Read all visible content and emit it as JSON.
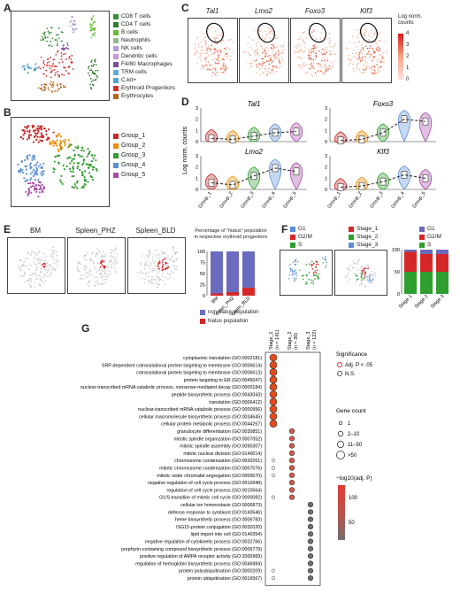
{
  "panel_labels": {
    "A": "A",
    "B": "B",
    "C": "C",
    "D": "D",
    "E": "E",
    "F": "F",
    "G": "G"
  },
  "legend_A": [
    {
      "label": "CD8 T cells",
      "color": "#3a8f3a"
    },
    {
      "label": "CD4 T cells",
      "color": "#2e7d32"
    },
    {
      "label": "B cells",
      "color": "#66bb33"
    },
    {
      "label": "Neutrophils",
      "color": "#8fbc8f"
    },
    {
      "label": "NK cells",
      "color": "#b39ddb"
    },
    {
      "label": "Dendritic cells",
      "color": "#ce93d8"
    },
    {
      "label": "F4/80 Macrophages",
      "color": "#7b4fa0"
    },
    {
      "label": "TRM cells",
      "color": "#5dade2"
    },
    {
      "label": "C-kit+",
      "color": "#4fa3d1"
    },
    {
      "label": "Erythroid Progenitors",
      "color": "#d32f2f"
    },
    {
      "label": "Erythrocytes",
      "color": "#b5651d"
    }
  ],
  "legend_B": [
    {
      "label": "Group_1",
      "color": "#c62828"
    },
    {
      "label": "Group_2",
      "color": "#ef8c00"
    },
    {
      "label": "Group_3",
      "color": "#2e9e2e"
    },
    {
      "label": "Group_4",
      "color": "#5b8fd6"
    },
    {
      "label": "Group_5",
      "color": "#a64ca6"
    }
  ],
  "panel_C": {
    "genes": [
      "Tal1",
      "Lmo2",
      "Foxo3",
      "Klf3"
    ],
    "colorbar_title": "Log norm. counts",
    "colorbar_ticks": [
      "4",
      "3",
      "2",
      "1",
      "0"
    ]
  },
  "panel_D": {
    "ylabel": "Log norm. counts",
    "groups": [
      "Group_1",
      "Group_2",
      "Group_3",
      "Group_4",
      "Group_5"
    ],
    "genes": [
      "Tal1",
      "Foxo3",
      "Lmo2",
      "Klf3"
    ],
    "yticks": [
      "0",
      "1",
      "2",
      "3"
    ]
  },
  "panel_E": {
    "umap_titles": [
      "BM",
      "Spleen_PHZ",
      "Spleen_BLD"
    ],
    "bar_title": "Percentage of \"hiatus\" population in respective erythroid progenitors",
    "bar_categories": [
      "BM",
      "Spleen_PHZ",
      "Spleen_BLD"
    ],
    "yticks": [
      "100",
      "75",
      "50",
      "25",
      "0"
    ],
    "legend": [
      {
        "label": "non-hiatus population",
        "color": "#6b6bbf"
      },
      {
        "label": "hiatus population",
        "color": "#d62728"
      }
    ]
  },
  "panel_F": {
    "legend_phase_left": [
      {
        "label": "G1",
        "color": "#5b8fd6"
      },
      {
        "label": "G2/M",
        "color": "#d62728"
      },
      {
        "label": "S",
        "color": "#2e9e2e"
      }
    ],
    "legend_stage": [
      {
        "label": "Stage_1",
        "color": "#d62728"
      },
      {
        "label": "Stage_2",
        "color": "#2e9e2e"
      },
      {
        "label": "Stage_3",
        "color": "#5b8fd6"
      }
    ],
    "legend_phase_right": [
      {
        "label": "G1",
        "color": "#6b6bbf"
      },
      {
        "label": "G2/M",
        "color": "#d62728"
      },
      {
        "label": "S",
        "color": "#2e9e2e"
      }
    ],
    "bar_categories": [
      "Stage 1",
      "Stage 2",
      "Stage 3"
    ],
    "yticks": [
      "100",
      "50",
      "0"
    ]
  },
  "panel_G": {
    "columns": [
      {
        "name": "Stage_1",
        "n": "(n = 141)"
      },
      {
        "name": "Stage_2",
        "n": "(n = 30)"
      },
      {
        "name": "Stage_3",
        "n": "(n = 122)"
      }
    ],
    "terms": [
      "cytoplasmic translation (GO:0002181)",
      "SRP-dependent cotranslational protein targeting to membrane (GO:0006614)",
      "cotranslational protein targeting to membrane (GO:0006613)",
      "protein targeting to ER (GO:0045047)",
      "nuclear-transcribed mRNA catabolic process, nonsense-mediated decay (GO:0000184)",
      "peptide biosynthetic process (GO:0043043)",
      "translation (GO:0006412)",
      "nuclear-transcribed mRNA catabolic process (GO:0000956)",
      "cellular macromolecule biosynthetic process (GO:0034645)",
      "cellular protein metabolic process (GO:0044267)",
      "granulocyte differentiation (GO:0030851)",
      "mitotic spindle organization (GO:0007052)",
      "mitotic spindle assembly (GO:0090307)",
      "mitotic nuclear division (GO:0140014)",
      "chromosome condensation (GO:0030261)",
      "mitotic chromosome condensation (GO:0007076)",
      "mitotic sister chromatid segregation (GO:0000070)",
      "negative regulation of cell cycle process (GO:0010948)",
      "regulation of cell cycle process (GO:0010564)",
      "G1/S transition of mitotic cell cycle (GO:0000082)",
      "cellular ion homeostasis (GO:0006873)",
      "defense response to symbiont (GO:0140546)",
      "heme biosynthetic process (GO:0006783)",
      "ISG15-protein conjugation (GO:0032020)",
      "lipid import into cell (GO:0140354)",
      "negative regulation of cytokinetic process (GO:0032766)",
      "porphyrin-containing compound biosynthetic process (GO:0006779)",
      "positive regulation of AMPA receptor activity (GO:2000969)",
      "regulation of hemoglobin biosynthetic process (GO:0046984)",
      "protein polyubiquitination (GO:0000209)",
      "protein ubiquitination (GO:0016567)"
    ],
    "dots": [
      [
        3,
        0,
        0
      ],
      [
        3,
        0,
        0
      ],
      [
        3,
        0,
        0
      ],
      [
        3,
        0,
        0
      ],
      [
        3,
        0,
        0
      ],
      [
        3,
        0,
        0
      ],
      [
        3,
        0,
        0
      ],
      [
        3,
        0,
        0
      ],
      [
        3,
        0,
        0
      ],
      [
        3,
        0,
        0
      ],
      [
        0,
        2,
        0
      ],
      [
        0,
        2,
        0
      ],
      [
        0,
        2,
        0
      ],
      [
        0,
        2,
        0
      ],
      [
        1,
        2,
        0
      ],
      [
        1,
        2,
        0
      ],
      [
        1,
        2,
        0
      ],
      [
        0,
        2,
        0
      ],
      [
        0,
        2,
        0
      ],
      [
        1,
        2,
        0
      ],
      [
        0,
        0,
        2
      ],
      [
        0,
        0,
        2
      ],
      [
        0,
        0,
        2
      ],
      [
        0,
        0,
        2
      ],
      [
        0,
        0,
        2
      ],
      [
        0,
        0,
        2
      ],
      [
        0,
        0,
        2
      ],
      [
        0,
        0,
        2
      ],
      [
        0,
        0,
        2
      ],
      [
        1,
        0,
        2
      ],
      [
        1,
        0,
        2
      ]
    ],
    "significance_title": "Significance",
    "significance_items": [
      "Adj. P < .05",
      "N.S."
    ],
    "genecount_title": "Gene count",
    "genecount_items": [
      "1",
      "2–10",
      "11–50",
      ">50"
    ],
    "colorbar_title": "−log10(adj. P)",
    "colorbar_ticks": [
      "100",
      "50"
    ]
  }
}
